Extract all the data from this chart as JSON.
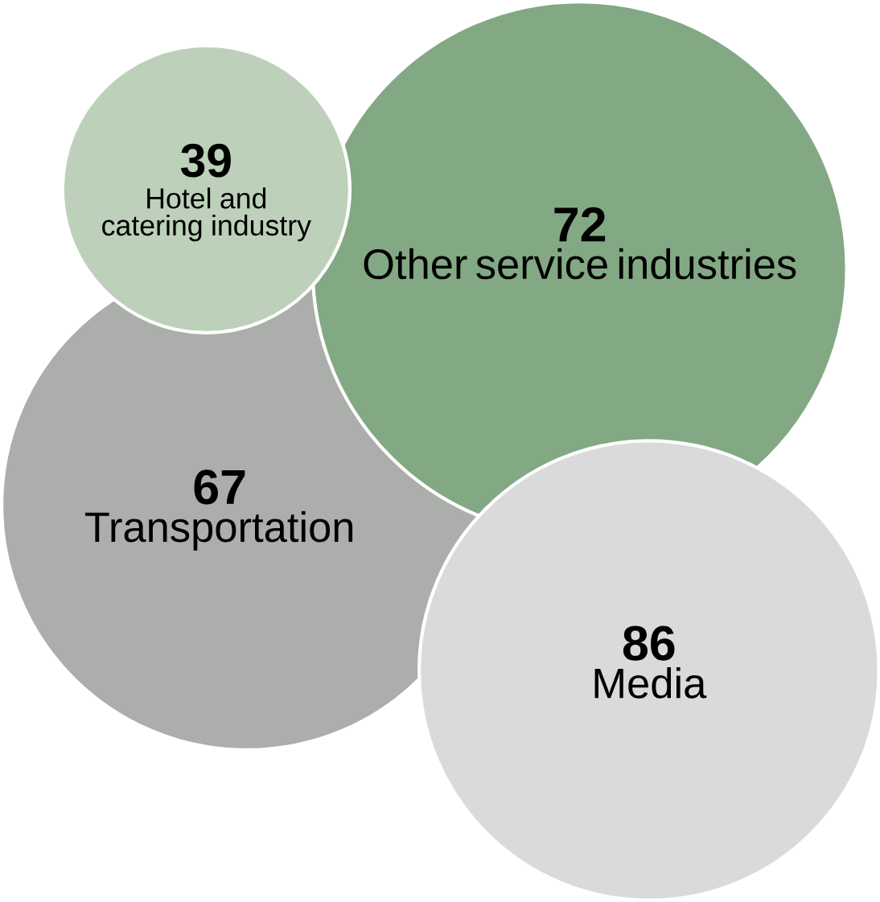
{
  "chart_data": {
    "type": "other",
    "categories": [
      "Hotel and catering industry",
      "Other service industries",
      "Transportation",
      "Media"
    ],
    "values": [
      39,
      72,
      67,
      86
    ],
    "data_labels": true,
    "colors": [
      "#bdd1ba",
      "#82a983",
      "#acaeab",
      "#dadada"
    ]
  }
}
